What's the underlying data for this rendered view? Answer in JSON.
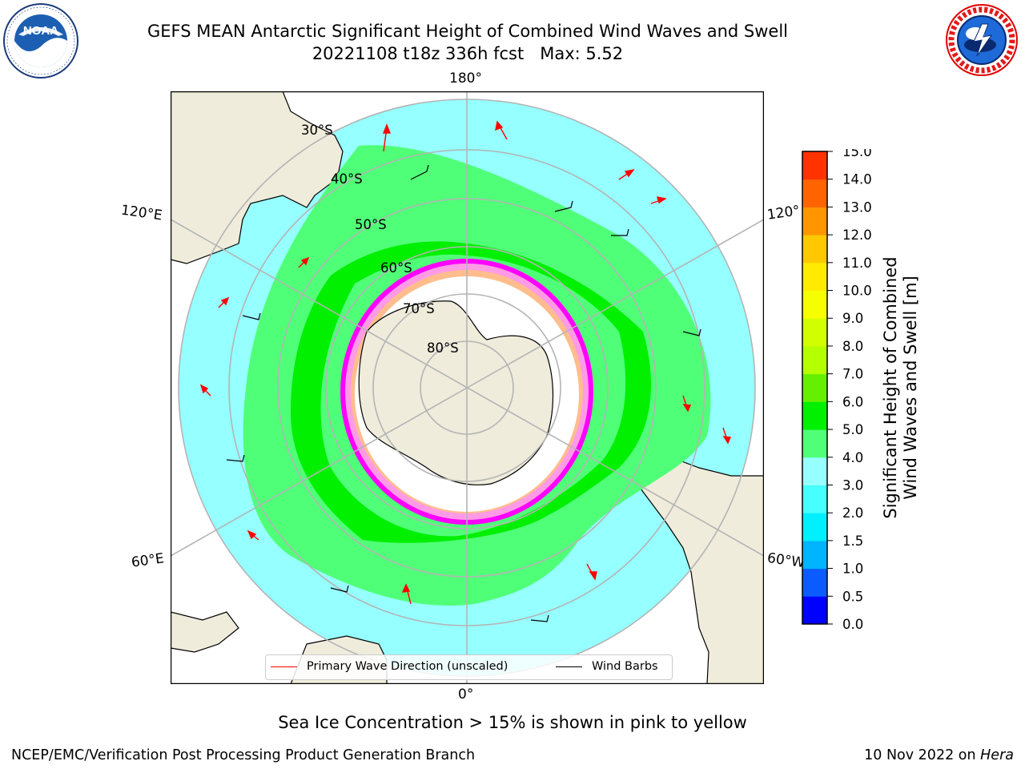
{
  "title": {
    "line1": "GEFS MEAN Antarctic Significant Height of Combined Wind Waves and Swell",
    "line2": "20221108 t18z 336h fcst   Max: 5.52"
  },
  "logos": {
    "noaa": {
      "text": "NOAA",
      "ring_text": "NATIONAL OCEANIC AND ATMOSPHERIC ADMINISTRATION · U.S. DEPARTMENT OF COMMERCE"
    },
    "nws": {
      "ring_text": "NATIONAL WEATHER SERVICE"
    }
  },
  "map": {
    "projection": "south-polar-stereographic",
    "longitude_labels": [
      "180°",
      "120°E",
      "120°",
      "60°E",
      "60°W",
      "0°"
    ],
    "latitude_labels": [
      "30°S",
      "40°S",
      "50°S",
      "60°S",
      "70°S",
      "80°S"
    ],
    "legend": [
      {
        "label": "Primary Wave Direction (unscaled)",
        "color": "#ff0000"
      },
      {
        "label": "Wind Barbs",
        "color": "#000000"
      }
    ],
    "colors": {
      "land": "#efecdc",
      "ice": "#ffffff",
      "grid": "#b4b4b4"
    }
  },
  "colorbar": {
    "label_line1": "Significant Height of Combined",
    "label_line2": "Wind Waves and Swell [m]",
    "ticks": [
      "0.0",
      "0.5",
      "1.0",
      "1.5",
      "2.0",
      "3.0",
      "4.0",
      "5.0",
      "6.0",
      "7.0",
      "8.0",
      "9.0",
      "10.0",
      "11.0",
      "12.0",
      "13.0",
      "14.0",
      "15.0"
    ],
    "colors": [
      "#0000ff",
      "#0a5cff",
      "#00b4ff",
      "#00f0ff",
      "#46ffff",
      "#96ffff",
      "#50ff78",
      "#00f000",
      "#64f000",
      "#b4ff00",
      "#d2ff00",
      "#f5ff00",
      "#ffeb00",
      "#ffc800",
      "#ff9600",
      "#ff6400",
      "#ff3200",
      "#ff0000"
    ]
  },
  "footnote": "Sea Ice Concentration > 15% is shown in pink to yellow",
  "credit": "NCEP/EMC/Verification Post Processing Product Generation Branch",
  "date": {
    "text": "10 Nov 2022 on ",
    "host": "Hera"
  }
}
